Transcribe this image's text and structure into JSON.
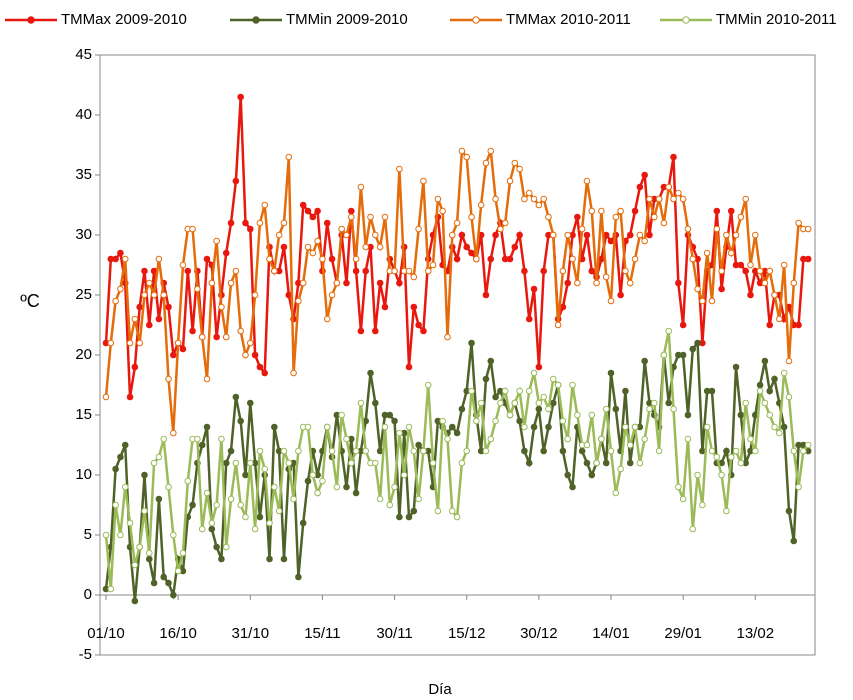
{
  "chart_data": {
    "type": "line",
    "x_label": "Día",
    "y_label": "ºC",
    "categories": [
      "01/10",
      null,
      null,
      null,
      null,
      null,
      null,
      null,
      null,
      null,
      null,
      null,
      null,
      null,
      null,
      "16/10",
      null,
      null,
      null,
      null,
      null,
      null,
      null,
      null,
      null,
      null,
      null,
      null,
      null,
      null,
      "31/10",
      null,
      null,
      null,
      null,
      null,
      null,
      null,
      null,
      null,
      null,
      null,
      null,
      null,
      null,
      "15/11",
      null,
      null,
      null,
      null,
      null,
      null,
      null,
      null,
      null,
      null,
      null,
      null,
      null,
      null,
      "30/11",
      null,
      null,
      null,
      null,
      null,
      null,
      null,
      null,
      null,
      null,
      null,
      null,
      null,
      null,
      "15/12",
      null,
      null,
      null,
      null,
      null,
      null,
      null,
      null,
      null,
      null,
      null,
      null,
      null,
      null,
      "30/12",
      null,
      null,
      null,
      null,
      null,
      null,
      null,
      null,
      null,
      null,
      null,
      null,
      null,
      null,
      "14/01",
      null,
      null,
      null,
      null,
      null,
      null,
      null,
      null,
      null,
      null,
      null,
      null,
      null,
      null,
      "29/01",
      null,
      null,
      null,
      null,
      null,
      null,
      null,
      null,
      null,
      null,
      null,
      null,
      null,
      null,
      "13/02",
      null,
      null,
      null,
      null,
      null,
      null,
      null,
      null,
      null,
      null,
      null
    ],
    "ylim": [
      -5,
      45
    ],
    "yticks": [
      -5,
      0,
      5,
      10,
      15,
      20,
      25,
      30,
      35,
      40,
      45
    ],
    "grid": false,
    "legend": "top",
    "series": [
      {
        "name": "TMMax 2009-2010",
        "color": "#e8180f",
        "marker_fill": "filled",
        "values": [
          21,
          28,
          28,
          28.5,
          26,
          16.5,
          19,
          24,
          27,
          22.5,
          27,
          23,
          26,
          24,
          20,
          21,
          20.5,
          27,
          22,
          27,
          21.5,
          28,
          27.5,
          21.5,
          25,
          28.5,
          31,
          34.5,
          41.5,
          31,
          30.5,
          20,
          19,
          18.5,
          29,
          27,
          27,
          29,
          25,
          23,
          26,
          32.5,
          32,
          31.5,
          32,
          27,
          31,
          28,
          26,
          30,
          26,
          32,
          27,
          22,
          27,
          29,
          22,
          26,
          24,
          28,
          27,
          26,
          29,
          19,
          24,
          22.5,
          22,
          28,
          30,
          31.5,
          27.5,
          27,
          29,
          28,
          30,
          29,
          28.5,
          28,
          30,
          25,
          28,
          30,
          31,
          28,
          28,
          29,
          30,
          27,
          23,
          25.5,
          19,
          27,
          30,
          30,
          23,
          24,
          26,
          30,
          31.5,
          28,
          30,
          27,
          26.5,
          28,
          30,
          29.5,
          30,
          25,
          29.5,
          30,
          32,
          34,
          35,
          30,
          33,
          33,
          34,
          34,
          36.5,
          26,
          22.5,
          30,
          29,
          28,
          21,
          27,
          27.5,
          32,
          25.5,
          29,
          32,
          27.5,
          27.5,
          27,
          25,
          27,
          26,
          27,
          22.5,
          25,
          25,
          23,
          24,
          22.5,
          22.5,
          28,
          28
        ]
      },
      {
        "name": "TMMin 2009-2010",
        "color": "#4f6228",
        "marker_fill": "filled",
        "values": [
          0.5,
          4,
          10.5,
          11.5,
          12.5,
          4,
          -0.5,
          4,
          10,
          3,
          1,
          8,
          1.5,
          1,
          0,
          3,
          2,
          6.5,
          7.5,
          11,
          12.5,
          14,
          5.5,
          4,
          3,
          11,
          12,
          16.5,
          14.5,
          10,
          16,
          11,
          6.5,
          10,
          3,
          14,
          12,
          3,
          10.5,
          11,
          1.5,
          6,
          9.5,
          12,
          10,
          12,
          14,
          11.5,
          15,
          12,
          9,
          13,
          8.5,
          12,
          14.5,
          18.5,
          16,
          12,
          15,
          15,
          14.5,
          6.5,
          13.5,
          6.5,
          7,
          12.5,
          12,
          12,
          9,
          14.5,
          14,
          13.5,
          14,
          13.5,
          15.5,
          17,
          21,
          15,
          12,
          18,
          19.5,
          16.5,
          17,
          16,
          15,
          16,
          14.5,
          12,
          11,
          14,
          15.5,
          12,
          14,
          16,
          17.5,
          12,
          10,
          9,
          14,
          12,
          11,
          10,
          11,
          13,
          11,
          18.5,
          15.5,
          12,
          17,
          11,
          14,
          14,
          19.5,
          16,
          15,
          14,
          20,
          16,
          19,
          20,
          20,
          15,
          20.5,
          21,
          12,
          17,
          17,
          11,
          11,
          12,
          10,
          19,
          15,
          11,
          12,
          15,
          17.5,
          19.5,
          17,
          18,
          16,
          14,
          7,
          4.5,
          12.5,
          12.5,
          12
        ]
      },
      {
        "name": "TMMax 2010-2011",
        "color": "#e46c0a",
        "marker_fill": "open",
        "values": [
          16.5,
          21,
          24.5,
          25.5,
          28,
          21,
          23,
          21,
          25,
          26,
          25,
          28,
          25,
          18,
          13.5,
          21,
          27.5,
          30.5,
          30.5,
          25.5,
          21.5,
          18,
          26,
          29.5,
          24,
          21.5,
          26,
          27,
          22,
          20,
          21,
          25,
          31,
          32.5,
          28,
          27,
          30,
          31,
          36.5,
          18.5,
          24.5,
          26,
          29,
          28.5,
          29.5,
          28,
          23,
          25,
          26,
          30.5,
          30,
          31.5,
          28,
          34,
          29,
          31.5,
          30,
          29,
          31.5,
          27,
          27,
          35.5,
          27,
          27,
          26.5,
          30.5,
          34.5,
          27,
          27.5,
          33,
          32,
          21.5,
          30,
          31,
          37,
          36.5,
          31.5,
          28,
          32.5,
          36,
          37,
          33,
          30.5,
          31,
          34.5,
          36,
          35.5,
          33,
          33.5,
          33,
          32.5,
          33,
          31.5,
          30,
          22.5,
          27,
          30,
          28,
          26,
          30.5,
          34.5,
          32,
          26,
          32,
          26.5,
          24.5,
          31.5,
          32,
          27,
          26,
          28,
          30,
          29.5,
          33,
          31.5,
          33,
          31,
          34,
          33,
          33.5,
          33,
          30.5,
          28,
          25.5,
          24.5,
          28.5,
          24.5,
          30.5,
          27,
          30,
          28.5,
          30,
          31.5,
          33,
          27.5,
          30,
          27,
          26,
          27,
          25,
          23,
          27.5,
          19.5,
          26,
          31,
          30.5,
          30.5
        ]
      },
      {
        "name": "TMMin 2010-2011",
        "color": "#9bbb59",
        "marker_fill": "open",
        "values": [
          5,
          0.5,
          7.5,
          5,
          9,
          6,
          2.5,
          4,
          7,
          3.5,
          11,
          11.5,
          13,
          9,
          5,
          2,
          3.5,
          9.5,
          13,
          13,
          5.5,
          8.5,
          6,
          7.5,
          13,
          4,
          8,
          11,
          7.5,
          6.5,
          11,
          5.5,
          12,
          10.5,
          6,
          9,
          7,
          12,
          11,
          8,
          12,
          14,
          14,
          10,
          8.5,
          9.5,
          14,
          12,
          9,
          15,
          13,
          11,
          12,
          16,
          12,
          11,
          11,
          8,
          14,
          7.5,
          9,
          13.5,
          10,
          14,
          12,
          8,
          12,
          17.5,
          11,
          7,
          14.5,
          13,
          7,
          6.5,
          11,
          12,
          17,
          14.5,
          16,
          12,
          13,
          14.5,
          16,
          17,
          15,
          16,
          17,
          14,
          17,
          18.5,
          16,
          16.5,
          15.5,
          18,
          17.5,
          14.5,
          13,
          17.5,
          15,
          12.5,
          12.5,
          15,
          11,
          13,
          15.5,
          12,
          8.5,
          10.5,
          14,
          12.5,
          14,
          11,
          13,
          15.5,
          16,
          12,
          20,
          22,
          15.5,
          9,
          8,
          13,
          5.5,
          10,
          7.5,
          14,
          12,
          11.5,
          10,
          7,
          11.5,
          12,
          11,
          16,
          13,
          12,
          17,
          16,
          15,
          14,
          13.5,
          18.5,
          16.5,
          12,
          9,
          12,
          12.5
        ]
      }
    ]
  }
}
